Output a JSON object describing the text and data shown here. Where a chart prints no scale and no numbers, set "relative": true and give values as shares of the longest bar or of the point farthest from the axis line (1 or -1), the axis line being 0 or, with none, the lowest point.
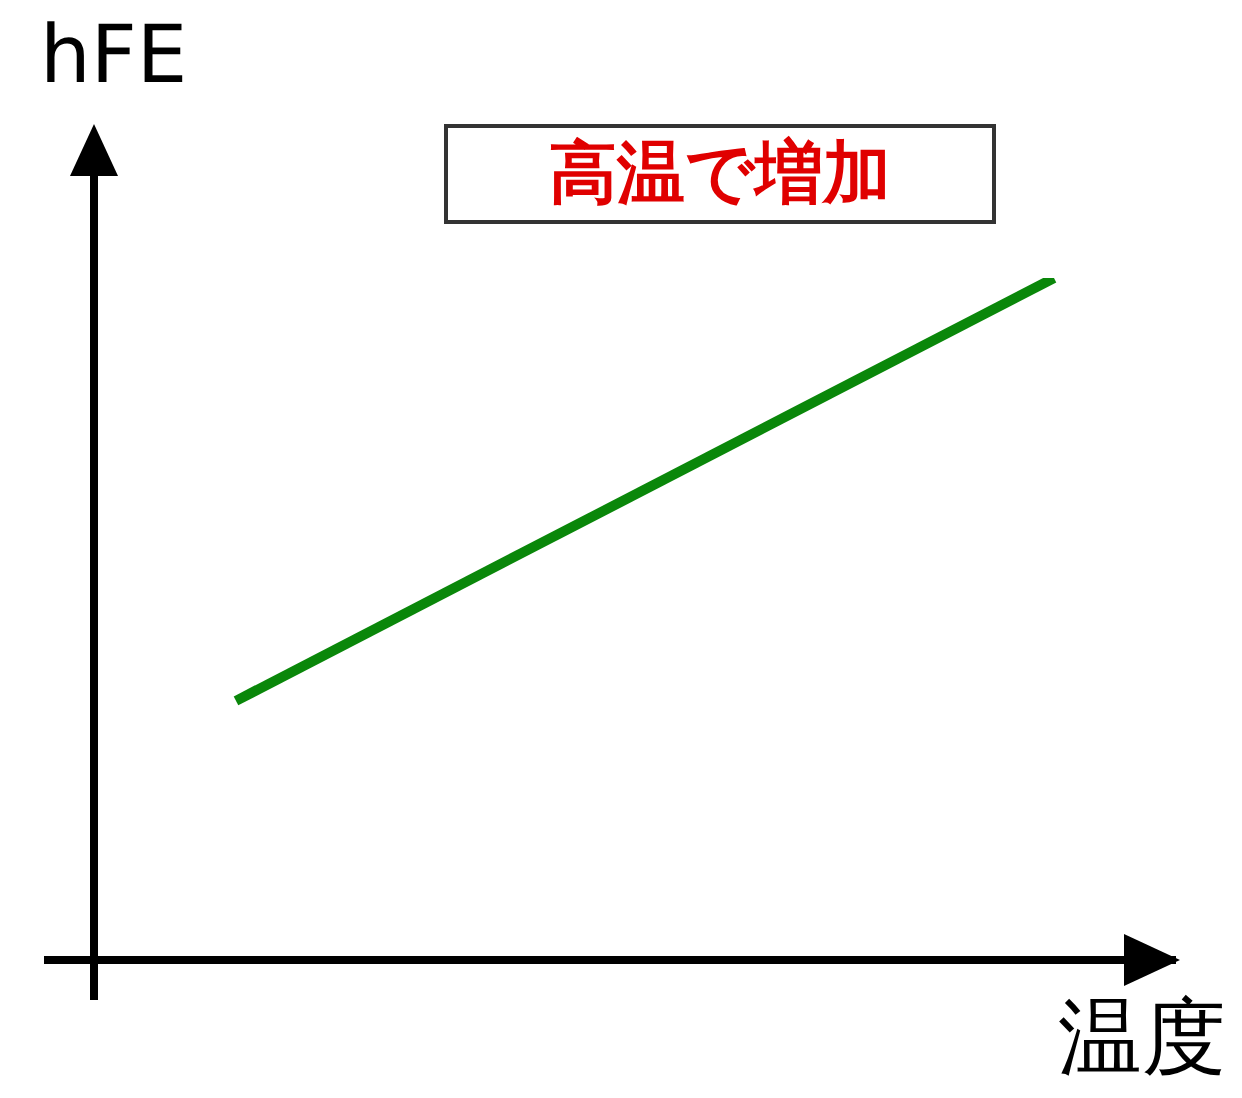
{
  "chart_data": {
    "type": "line",
    "relative": true,
    "xlabel": "温度",
    "ylabel": "hFE",
    "annotations": [
      "高温で増加"
    ],
    "categories": [
      null,
      null
    ],
    "series": [
      {
        "color": "#0a870a",
        "values": [
          0.38,
          1
        ]
      }
    ],
    "marker": "none",
    "line_style": "solid",
    "grid": false
  }
}
